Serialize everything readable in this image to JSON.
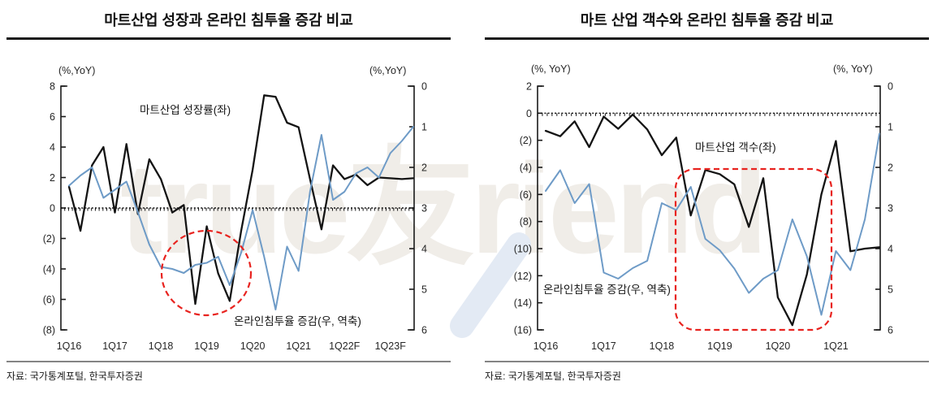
{
  "watermark": {
    "text": "true友riend",
    "text_color": "#f0ede8",
    "swoosh_color": "#e3eaf4"
  },
  "chart_data": [
    {
      "type": "line",
      "title": "마트산업 성장과 온라인 침투율 증감 비교",
      "source": "자료: 국가통계포털, 한국투자증권",
      "x_frequency": "quarterly",
      "x_labels": [
        "1Q16",
        "1Q17",
        "1Q18",
        "1Q19",
        "1Q20",
        "1Q21",
        "1Q22F",
        "1Q23F"
      ],
      "left_axis": {
        "unit": "(%,YoY)",
        "min": -8,
        "max": 8,
        "tick_labels": [
          "8",
          "6",
          "4",
          "2",
          "0",
          "(2)",
          "(4)",
          "(6)",
          "(8)"
        ]
      },
      "right_axis": {
        "unit": "(%,YoY)",
        "min": 0,
        "max": 6,
        "inverted": true,
        "tick_labels": [
          "0",
          "1",
          "2",
          "3",
          "4",
          "5",
          "6"
        ]
      },
      "series": [
        {
          "name": "마트산업 성장률(좌)",
          "axis": "left",
          "color": "#141414",
          "values": [
            1.4,
            -1.5,
            2.8,
            4.0,
            -0.3,
            4.2,
            -0.4,
            3.2,
            1.9,
            -0.3,
            0.2,
            -6.3,
            -1.2,
            -4.3,
            -6.1,
            -1.5,
            2.5,
            7.4,
            7.3,
            5.6,
            5.3,
            1.9,
            -1.4,
            2.8,
            1.9,
            2.2,
            1.5,
            2.0,
            1.95,
            1.9,
            1.95
          ]
        },
        {
          "name": "온라인침투율 증감(우, 역축)",
          "axis": "right",
          "color": "#6e9bc7",
          "values": [
            2.45,
            2.2,
            2.0,
            2.75,
            2.55,
            2.35,
            3.1,
            3.9,
            4.45,
            4.5,
            4.6,
            4.4,
            4.35,
            4.2,
            4.9,
            4.1,
            3.05,
            4.2,
            5.5,
            3.95,
            4.55,
            2.6,
            1.2,
            2.8,
            2.6,
            2.15,
            2.0,
            2.25,
            1.65,
            1.35,
            1.0
          ]
        }
      ],
      "annotation": {
        "shape": "ellipse",
        "color": "#e8231f",
        "style": "dashed"
      }
    },
    {
      "type": "line",
      "title": "마트 산업 객수와 온라인 침투율 증감 비교",
      "source": "자료: 국가통계포털, 한국투자증권",
      "x_frequency": "quarterly",
      "x_labels": [
        "1Q16",
        "1Q17",
        "1Q18",
        "1Q19",
        "1Q20",
        "1Q21"
      ],
      "left_axis": {
        "unit": "(%,  YoY)",
        "min": -16,
        "max": 2,
        "tick_labels": [
          "2",
          "0",
          "(2)",
          "(4)",
          "(6)",
          "(8)",
          "(10)",
          "(12)",
          "(14)",
          "(16)"
        ]
      },
      "right_axis": {
        "unit": "(%,  YoY)",
        "min": 0,
        "max": 6,
        "inverted": true,
        "tick_labels": [
          "0",
          "1",
          "2",
          "3",
          "4",
          "5",
          "6"
        ]
      },
      "series": [
        {
          "name": "마트산업 객수(좌)",
          "axis": "left",
          "color": "#141414",
          "values": [
            -1.3,
            -1.7,
            -0.6,
            -2.5,
            -0.25,
            -1.15,
            -0.1,
            -1.2,
            -3.1,
            -1.8,
            -7.55,
            -4.2,
            -4.5,
            -5.25,
            -8.4,
            -4.8,
            -13.6,
            -15.65,
            -11.9,
            -6.0,
            -2.05,
            -10.2,
            -10.0,
            -9.9
          ]
        },
        {
          "name": "온라인침투율 증감(우, 역축)",
          "axis": "right",
          "color": "#6e9bc7",
          "values": [
            2.58,
            2.07,
            2.88,
            2.41,
            4.59,
            4.74,
            4.48,
            4.3,
            2.88,
            3.05,
            2.48,
            3.76,
            4.04,
            4.49,
            5.09,
            4.74,
            4.53,
            3.28,
            4.19,
            5.63,
            4.06,
            4.53,
            3.28,
            1.17
          ]
        }
      ],
      "annotation": {
        "shape": "rect",
        "color": "#e8231f",
        "style": "dashed"
      }
    }
  ]
}
